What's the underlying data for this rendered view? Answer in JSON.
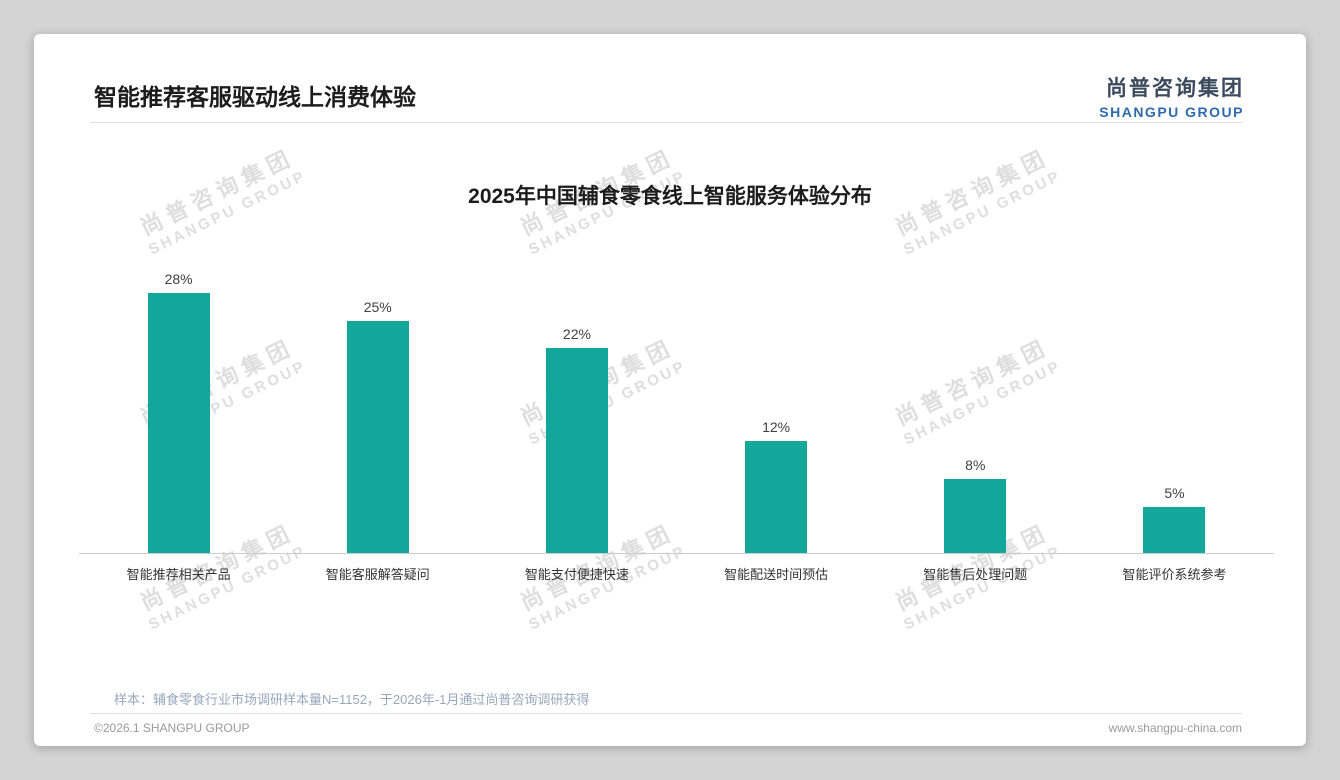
{
  "page": {
    "title": "智能推荐客服驱动线上消费体验",
    "sample_note": "样本：辅食零食行业市场调研样本量N=1152，于2026年-1月通过尚普咨询调研获得",
    "footer_left": "©2026.1 SHANGPU GROUP",
    "footer_right": "www.shangpu-china.com"
  },
  "logo": {
    "cn": "尚普咨询集团",
    "en": "SHANGPU GROUP"
  },
  "watermark": {
    "cn": "尚普咨询集团",
    "en": "SHANGPU GROUP"
  },
  "chart_data": {
    "type": "bar",
    "title": "2025年中国辅食零食线上智能服务体验分布",
    "categories": [
      "智能推荐相关产品",
      "智能客服解答疑问",
      "智能支付便捷快速",
      "智能配送时间预估",
      "智能售后处理问题",
      "智能评价系统参考"
    ],
    "values": [
      28,
      25,
      22,
      12,
      8,
      5
    ],
    "value_labels": [
      "28%",
      "25%",
      "22%",
      "12%",
      "8%",
      "5%"
    ],
    "bar_color": "#12a79a",
    "xlabel": "",
    "ylabel": "",
    "ylim": [
      0,
      30
    ],
    "grid": false,
    "legend": false
  }
}
